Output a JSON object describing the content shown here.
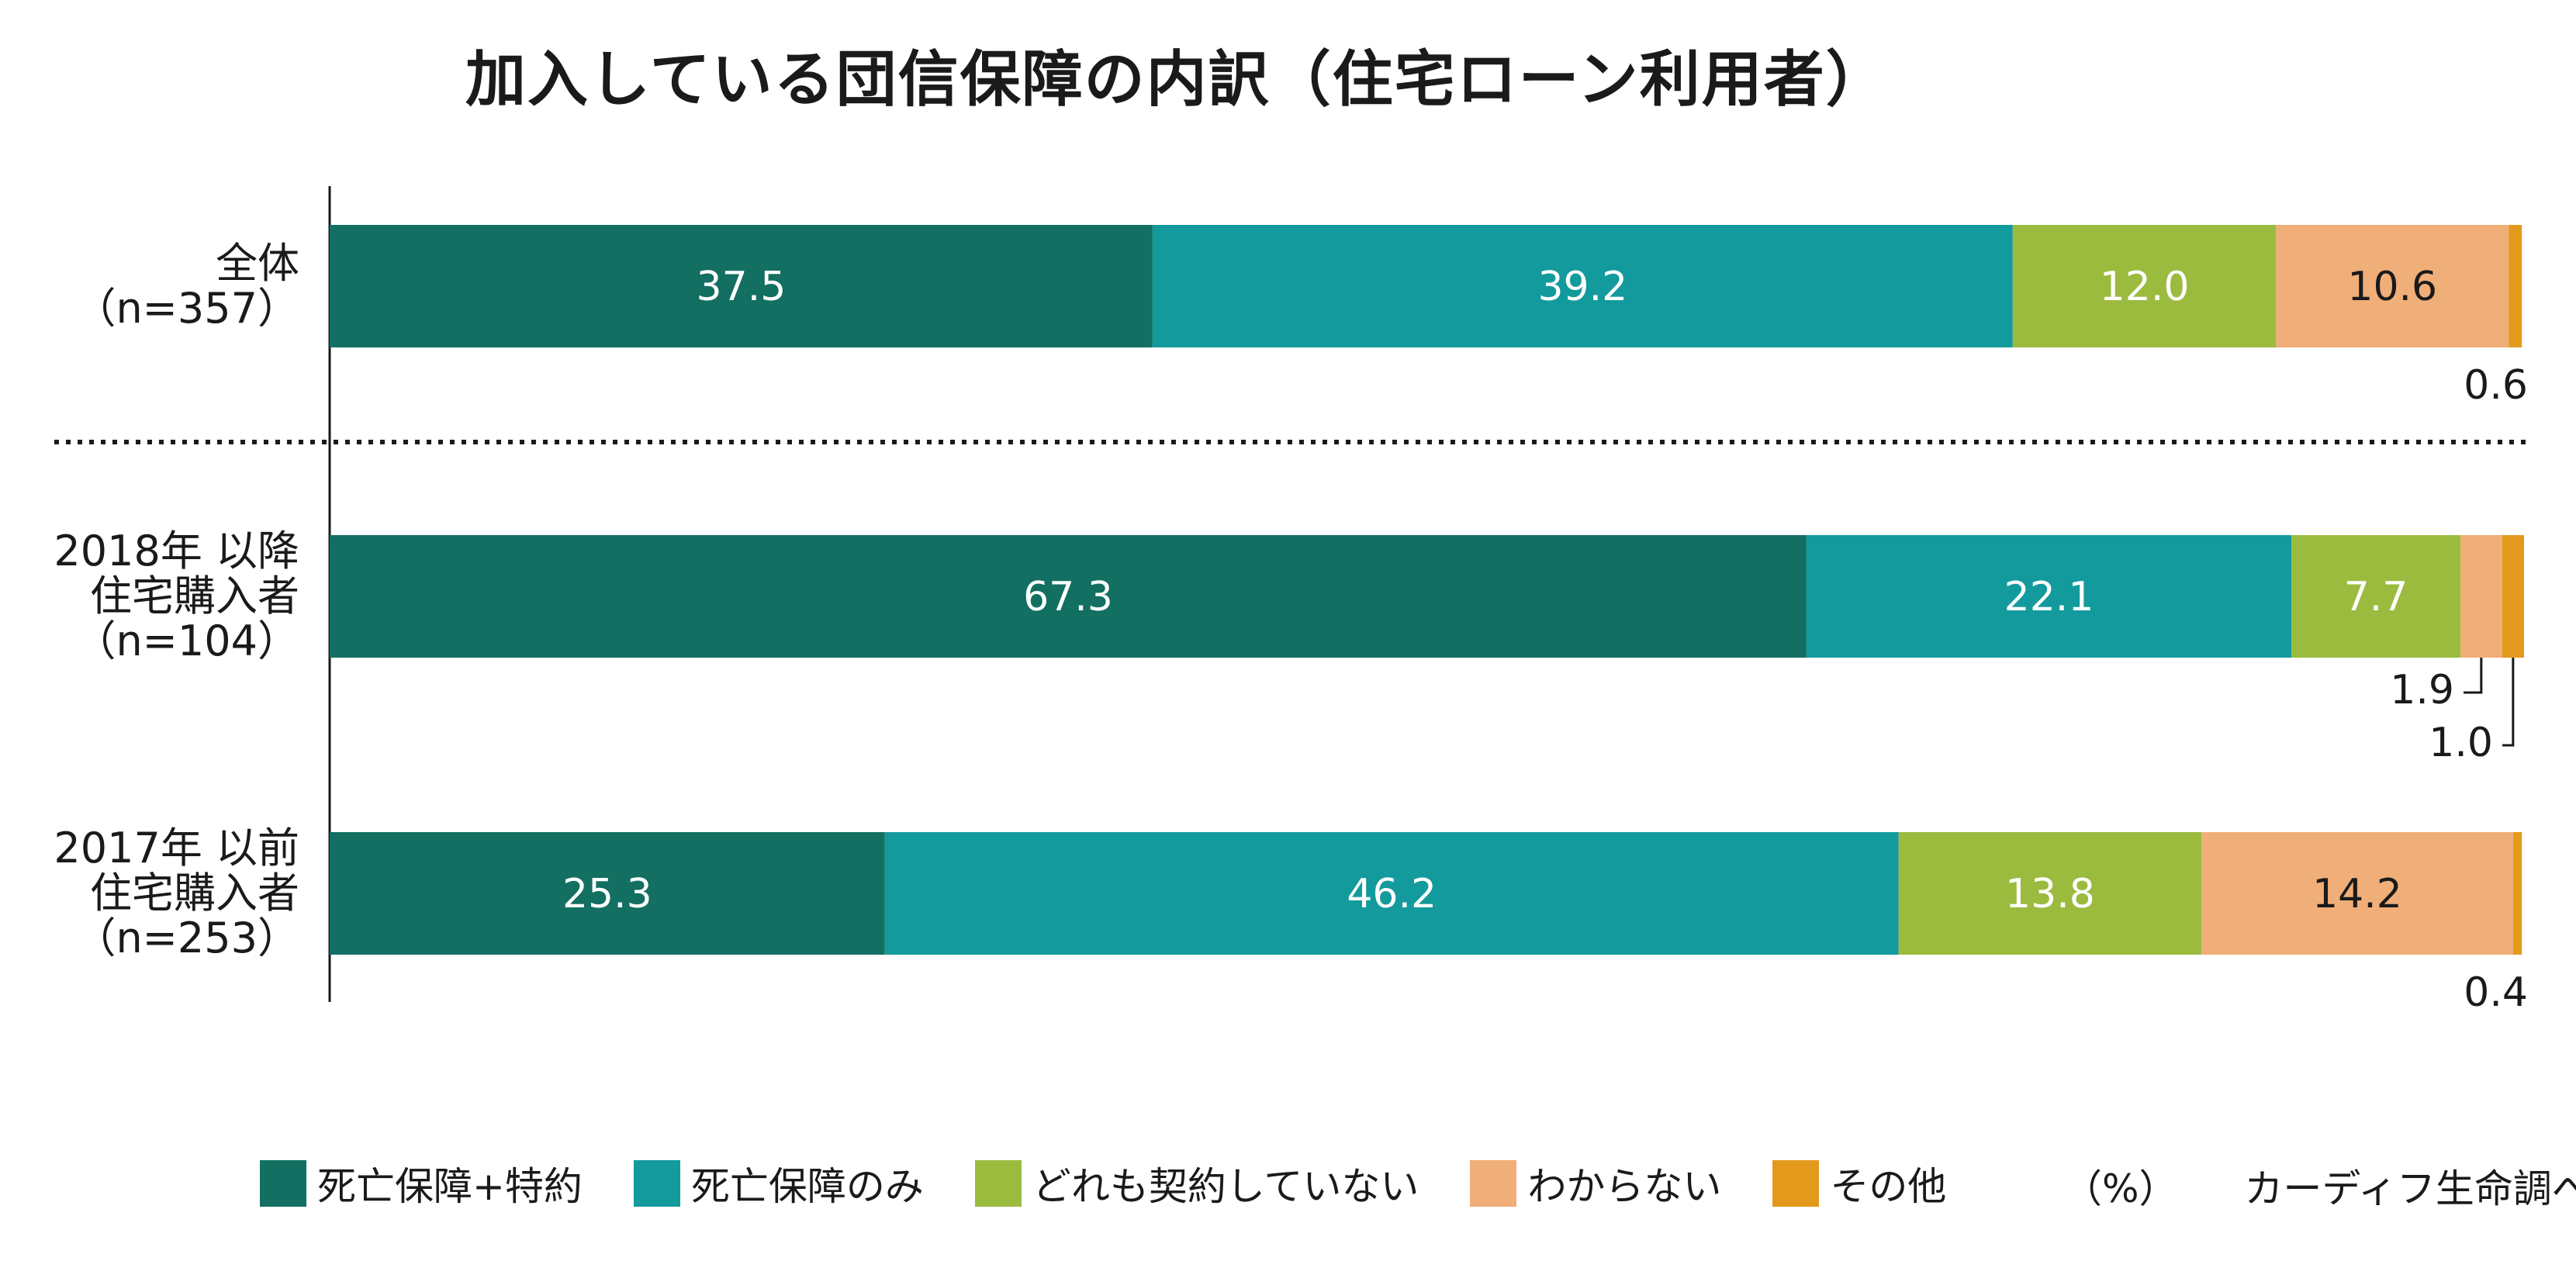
{
  "title": "加入している団信保障の内訳（住宅ローン利用者）",
  "chart_data": {
    "type": "bar",
    "orientation": "horizontal",
    "stacked": true,
    "unit": "%",
    "categories": [
      {
        "id": "all",
        "lines": [
          "全体",
          "（n=357）"
        ]
      },
      {
        "id": "after2018",
        "lines": [
          "2018年 以降",
          "住宅購入者",
          "（n=104）"
        ]
      },
      {
        "id": "before2017",
        "lines": [
          "2017年 以前",
          "住宅購入者",
          "（n=253）"
        ]
      }
    ],
    "series": [
      {
        "name": "死亡保障+特約",
        "color": "#126f62",
        "label_color": "#ffffff",
        "values": [
          37.5,
          67.3,
          25.3
        ],
        "labels": [
          "37.5",
          "67.3",
          "25.3"
        ]
      },
      {
        "name": "死亡保障のみ",
        "color": "#139a9c",
        "label_color": "#ffffff",
        "values": [
          39.2,
          22.1,
          46.2
        ],
        "labels": [
          "39.2",
          "22.1",
          "46.2"
        ]
      },
      {
        "name": "どれも契約していない",
        "color": "#9bbb3f",
        "label_color": "#ffffff",
        "values": [
          12.0,
          7.7,
          13.8
        ],
        "labels": [
          "12.0",
          "7.7",
          "13.8"
        ]
      },
      {
        "name": "わからない",
        "color": "#f0ae78",
        "label_color": "#1a1a1a",
        "values": [
          10.6,
          1.9,
          14.2
        ],
        "labels": [
          "10.6",
          "1.9",
          "14.2"
        ]
      },
      {
        "name": "その他",
        "color": "#e39a1c",
        "label_color": "#1a1a1a",
        "values": [
          0.6,
          1.0,
          0.4
        ],
        "labels": [
          "0.6",
          "1.0",
          "0.4"
        ]
      }
    ],
    "xlim": [
      0,
      100
    ],
    "grid": false,
    "legend_position": "bottom"
  },
  "footer": {
    "unit_note": "（%）",
    "source": "カーディフ生命調べ"
  }
}
